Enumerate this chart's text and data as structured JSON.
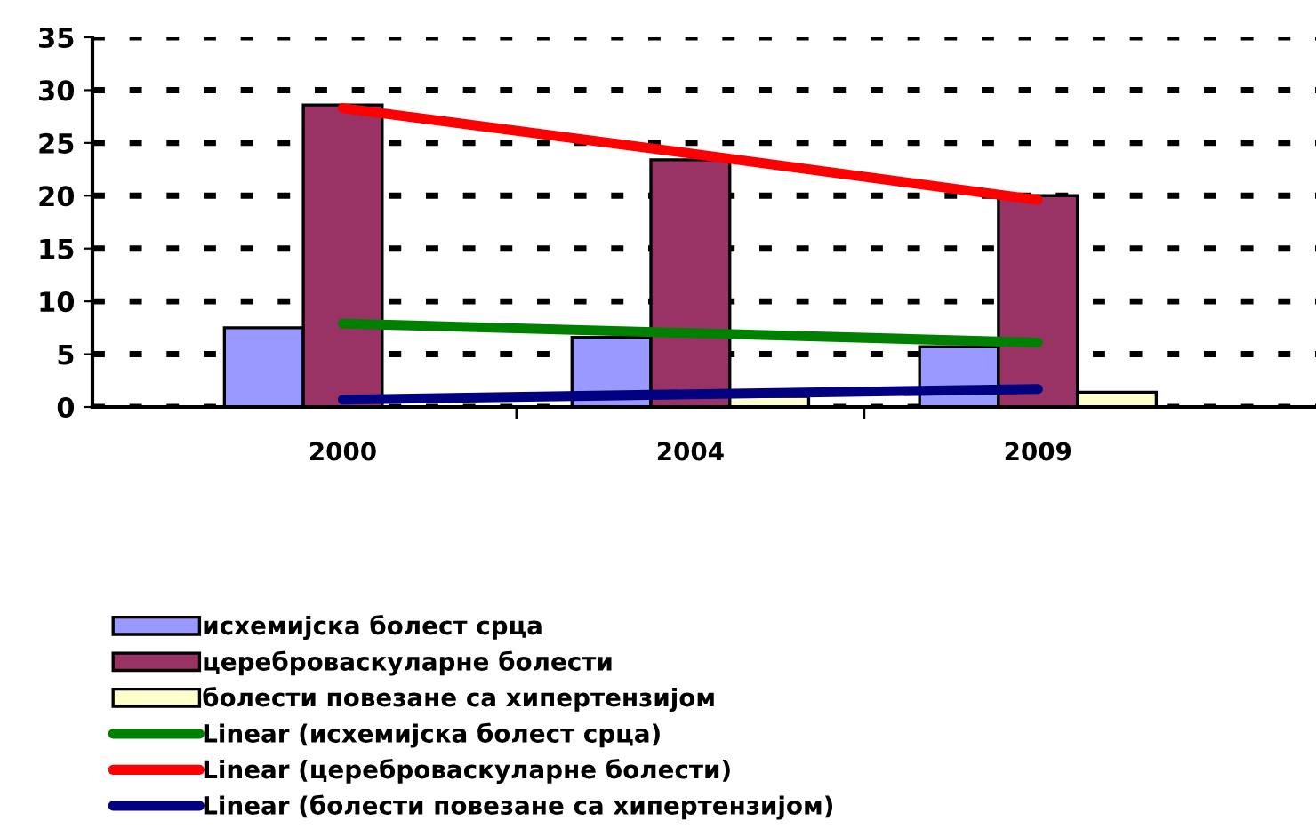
{
  "chart_data": {
    "type": "bar",
    "categories": [
      "2000",
      "2004",
      "2009"
    ],
    "series": [
      {
        "name": "исхемијска болест срца",
        "color": "#9999ff",
        "values": [
          7.5,
          6.6,
          5.7
        ]
      },
      {
        "name": "цереброваскуларне болести",
        "color": "#993366",
        "values": [
          28.6,
          23.4,
          20.0
        ]
      },
      {
        "name": "болести повезане са хипертензијом",
        "color": "#ffffcc",
        "values": [
          null,
          1.0,
          1.4
        ]
      },
      {
        "name": "Linear (исхемијска болест срца)",
        "type": "line",
        "color": "#008000",
        "values": [
          7.9,
          7.0,
          6.1
        ]
      },
      {
        "name": "Linear (цереброваскуларне болести)",
        "type": "line",
        "color": "#ff0000",
        "values": [
          28.3,
          24.0,
          19.6
        ]
      },
      {
        "name": "Linear (болести повезане са хипертензијом)",
        "type": "line",
        "color": "#000080",
        "values": [
          0.7,
          1.2,
          1.7
        ]
      }
    ],
    "ylim": [
      0,
      35
    ],
    "yticks": [
      0,
      5,
      10,
      15,
      20,
      25,
      30,
      35
    ],
    "grid": "y",
    "legend": "bottom"
  }
}
